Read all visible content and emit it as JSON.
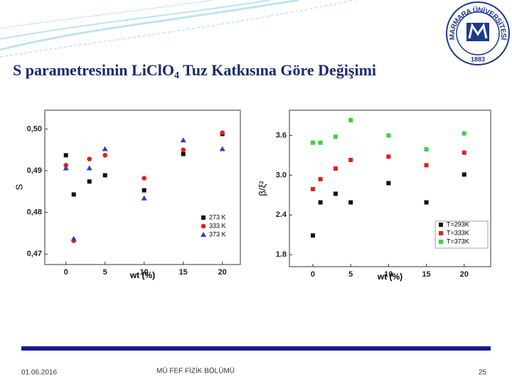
{
  "slide": {
    "title_main": "S parametresinin LiClO",
    "title_sub": "4",
    "title_rest": " Tuz Katkısına Göre Değişimi",
    "date": "01.06.2016",
    "department": "MÜ FEF FİZİK BÖLÜMÜ",
    "page": "25",
    "logo_text": "MARMARA ÜNİVERSİTESİ",
    "logo_year": "1883"
  },
  "chart_data": [
    {
      "type": "scatter",
      "xlabel": "wt (%)",
      "ylabel": "S",
      "x": [
        0,
        1,
        3,
        5,
        10,
        15,
        20
      ],
      "xlim": [
        -2.7,
        22.3
      ],
      "xticks": [
        0,
        5,
        10,
        15,
        20
      ],
      "ylim": [
        0.4675,
        0.5045
      ],
      "yticks": [
        {
          "value": 0.47,
          "label": "0,47"
        },
        {
          "value": 0.48,
          "label": "0,48"
        },
        {
          "value": 0.49,
          "label": "0,49"
        },
        {
          "value": 0.5,
          "label": "0,50"
        }
      ],
      "legend": "lower right",
      "series": [
        {
          "name": "273 K",
          "color": "#111111",
          "marker": "square",
          "values": [
            0.4937,
            0.4843,
            0.4874,
            0.4889,
            0.4853,
            0.494,
            0.4988
          ]
        },
        {
          "name": "333 K",
          "color": "#e0201c",
          "marker": "circle",
          "values": [
            0.4913,
            0.4732,
            0.4928,
            0.4937,
            0.4882,
            0.495,
            0.4991
          ]
        },
        {
          "name": "373 K",
          "color": "#2a3fc8",
          "marker": "triangle",
          "values": [
            0.4906,
            0.4737,
            0.4906,
            0.4952,
            0.4834,
            0.4973,
            0.4952
          ]
        }
      ]
    },
    {
      "type": "scatter",
      "xlabel": "wt (%)",
      "ylabel": "β/ξ²",
      "x": [
        0,
        1,
        3,
        5,
        10,
        15,
        20
      ],
      "xlim": [
        -3.1,
        23.5
      ],
      "xticks": [
        0,
        5,
        10,
        15,
        20
      ],
      "ylim": [
        1.62,
        3.98
      ],
      "yticks": [
        1.8,
        2.4,
        {
          "value": 3,
          "label": "3.0"
        },
        3.6
      ],
      "legend": "lower right",
      "series": [
        {
          "name": "T=293K",
          "color": "#111111",
          "marker": "square",
          "values": [
            2.09,
            2.59,
            2.72,
            2.59,
            2.88,
            2.59,
            3.01
          ]
        },
        {
          "name": "T=333K",
          "color": "#e0201c",
          "marker": "square",
          "values": [
            2.79,
            2.94,
            3.1,
            3.23,
            3.28,
            3.15,
            3.34
          ]
        },
        {
          "name": "T=373K",
          "color": "#3ecf3e",
          "marker": "square",
          "values": [
            3.49,
            3.49,
            3.58,
            3.83,
            3.6,
            3.39,
            3.63
          ]
        }
      ]
    }
  ]
}
